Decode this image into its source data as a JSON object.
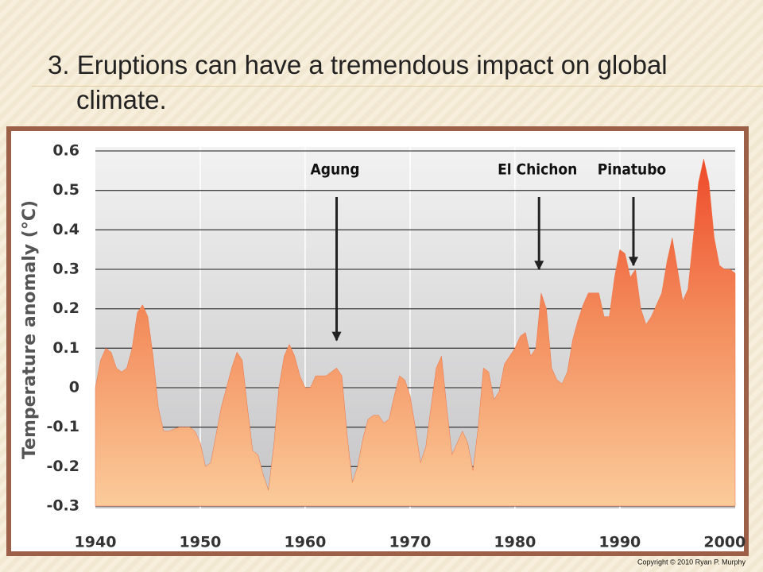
{
  "slide_title": "3. Eruptions can have a tremendous impact on global climate.",
  "copyright": "Copyright © 2010 Ryan P. Murphy",
  "chart_data": {
    "type": "area",
    "y_label": "Temperature anomaly (°C)",
    "x": [
      1940,
      1940.5,
      1941,
      1941.5,
      1942,
      1942.5,
      1943,
      1943.5,
      1944,
      1944.5,
      1945,
      1945.5,
      1946,
      1946.5,
      1947,
      1948,
      1949,
      1949.5,
      1950,
      1950.5,
      1951,
      1951.5,
      1952,
      1952.5,
      1953,
      1953.5,
      1954,
      1954.5,
      1955,
      1955.5,
      1956,
      1956.5,
      1957,
      1957.5,
      1958,
      1958.5,
      1959,
      1959.5,
      1960,
      1960.5,
      1961,
      1962,
      1962.5,
      1963,
      1963.5,
      1964,
      1964.5,
      1965,
      1965.5,
      1966,
      1966.5,
      1967,
      1967.5,
      1968,
      1968.5,
      1969,
      1969.5,
      1970,
      1970.5,
      1971,
      1971.5,
      1972,
      1972.5,
      1973,
      1973.5,
      1974,
      1974.5,
      1975,
      1975.5,
      1976,
      1976.5,
      1977,
      1977.5,
      1978,
      1978.5,
      1979,
      1980,
      1980.5,
      1981,
      1981.5,
      1982,
      1982.5,
      1983,
      1983.5,
      1984,
      1984.5,
      1985,
      1985.5,
      1986,
      1986.5,
      1987,
      1988,
      1988.5,
      1989,
      1989.5,
      1990,
      1990.5,
      1991,
      1991.5,
      1992,
      1992.5,
      1993,
      1993.5,
      1994,
      1994.5,
      1995,
      1995.5,
      1996,
      1996.5,
      1997,
      1997.5,
      1998,
      1998.5,
      1999,
      1999.5,
      2000,
      2000.5,
      2001
    ],
    "values": [
      0.0,
      0.07,
      0.1,
      0.09,
      0.05,
      0.04,
      0.05,
      0.1,
      0.19,
      0.21,
      0.18,
      0.08,
      -0.05,
      -0.11,
      -0.11,
      -0.1,
      -0.1,
      -0.11,
      -0.14,
      -0.2,
      -0.19,
      -0.12,
      -0.05,
      0.0,
      0.05,
      0.09,
      0.07,
      -0.05,
      -0.16,
      -0.17,
      -0.22,
      -0.26,
      -0.15,
      0.0,
      0.08,
      0.11,
      0.08,
      0.03,
      0.0,
      0.0,
      0.03,
      0.03,
      0.04,
      0.05,
      0.03,
      -0.12,
      -0.24,
      -0.2,
      -0.13,
      -0.08,
      -0.07,
      -0.07,
      -0.09,
      -0.08,
      -0.02,
      0.03,
      0.02,
      -0.02,
      -0.1,
      -0.19,
      -0.15,
      -0.05,
      0.05,
      0.08,
      -0.05,
      -0.17,
      -0.14,
      -0.11,
      -0.14,
      -0.21,
      -0.1,
      0.05,
      0.04,
      -0.03,
      -0.01,
      0.06,
      0.1,
      0.13,
      0.14,
      0.08,
      0.1,
      0.24,
      0.2,
      0.05,
      0.02,
      0.01,
      0.04,
      0.12,
      0.17,
      0.21,
      0.24,
      0.24,
      0.18,
      0.18,
      0.28,
      0.35,
      0.34,
      0.28,
      0.3,
      0.2,
      0.16,
      0.18,
      0.21,
      0.24,
      0.32,
      0.38,
      0.3,
      0.22,
      0.25,
      0.38,
      0.52,
      0.58,
      0.52,
      0.38,
      0.31,
      0.3,
      0.3,
      0.29
    ],
    "color": "#f07040",
    "xlim": [
      1940,
      2001
    ],
    "xticks": [
      1940,
      1950,
      1960,
      1970,
      1980,
      1990,
      2000
    ],
    "ylim": [
      -0.3,
      0.6
    ],
    "yticks": [
      0.6,
      0.5,
      0.4,
      0.3,
      0.2,
      0.1,
      0,
      -0.1,
      -0.2,
      -0.3
    ],
    "grid": true,
    "annotations": [
      {
        "text": "Agung",
        "x": 1963,
        "y": 0.12
      },
      {
        "text": "El Chichon",
        "x": 1982.3,
        "y": 0.3
      },
      {
        "text": "Pinatubo",
        "x": 1991.3,
        "y": 0.31
      }
    ]
  }
}
